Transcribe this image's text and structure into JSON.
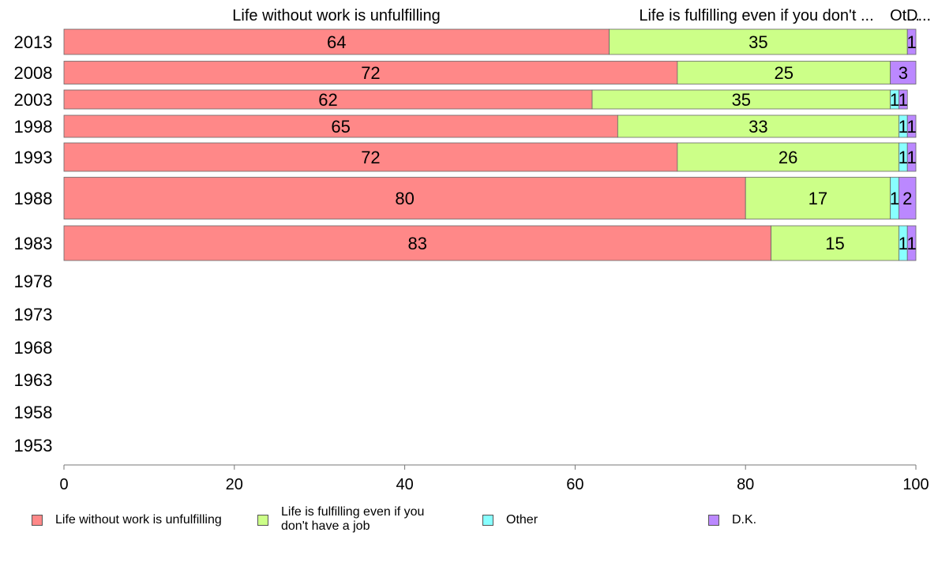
{
  "chart_data": {
    "type": "bar",
    "orientation": "horizontal",
    "stacked": true,
    "categories": [
      "2013",
      "2008",
      "2003",
      "1998",
      "1993",
      "1988",
      "1983",
      "1978",
      "1973",
      "1968",
      "1963",
      "1958",
      "1953"
    ],
    "series": [
      {
        "name": "Life without work is unfulfilling",
        "color": "#ff8888",
        "values": [
          64,
          72,
          62,
          65,
          72,
          80,
          83,
          null,
          null,
          null,
          null,
          null,
          null
        ]
      },
      {
        "name": "Life is fulfilling even if you don't have a job",
        "color": "#ccff88",
        "values": [
          35,
          25,
          35,
          33,
          26,
          17,
          15,
          null,
          null,
          null,
          null,
          null,
          null
        ]
      },
      {
        "name": "Other",
        "color": "#88ffff",
        "values": [
          0,
          0,
          1,
          1,
          1,
          1,
          1,
          null,
          null,
          null,
          null,
          null,
          null
        ]
      },
      {
        "name": "D.K.",
        "color": "#bb88ff",
        "values": [
          1,
          3,
          1,
          1,
          1,
          2,
          1,
          null,
          null,
          null,
          null,
          null,
          null
        ]
      }
    ],
    "top_labels": [
      "Life without work is unfulfilling",
      "Life is fulfilling even if you don't ...",
      "Ot...",
      "D..."
    ],
    "xlim": [
      0,
      100
    ],
    "xticks": [
      0,
      20,
      40,
      60,
      80,
      100
    ],
    "legend_position": "bottom",
    "grid": false
  }
}
